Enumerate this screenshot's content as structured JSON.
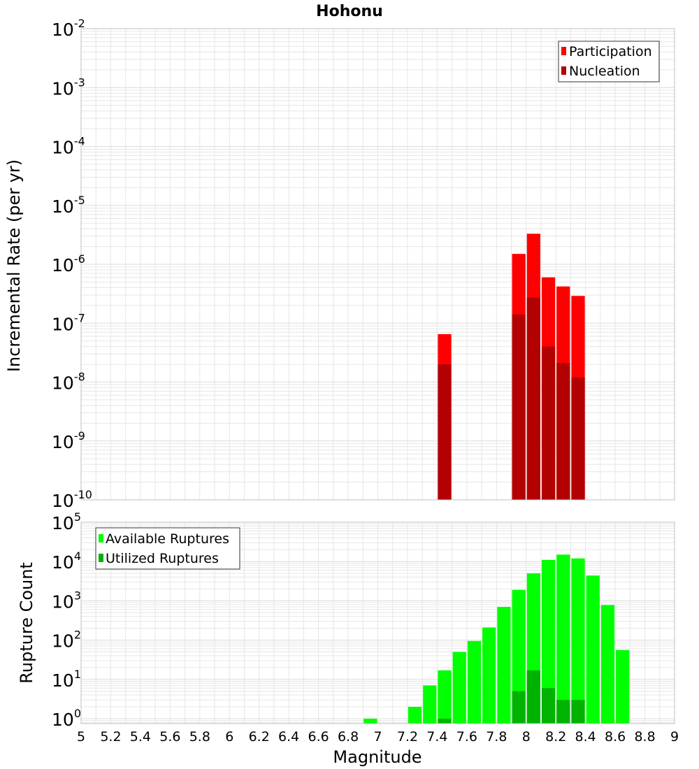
{
  "title": "Hohonu",
  "xlabel": "Magnitude",
  "x_ticks": [
    "5",
    "5.2",
    "5.4",
    "5.6",
    "5.8",
    "6",
    "6.2",
    "6.4",
    "6.6",
    "6.8",
    "7",
    "7.2",
    "7.4",
    "7.6",
    "7.8",
    "8",
    "8.2",
    "8.4",
    "8.6",
    "8.8",
    "9"
  ],
  "colors": {
    "participation": "#ff0000",
    "nucleation": "#b30000",
    "available": "#00ff00",
    "utilized": "#00b300",
    "grid": "#e6e6e6",
    "frame": "#bfbfbf"
  },
  "chart_data": [
    {
      "type": "bar",
      "title": "Hohonu",
      "ylabel": "Incremental Rate (per yr)",
      "yscale": "log",
      "ylim": [
        1e-10,
        0.01
      ],
      "y_tick_exponents": [
        "-10",
        "-9",
        "-8",
        "-7",
        "-6",
        "-5",
        "-4",
        "-3",
        "-2"
      ],
      "xlim": [
        5,
        9
      ],
      "bar_width": 0.1,
      "legend_position": "top-right",
      "series": [
        {
          "name": "Participation",
          "x": [
            7.45,
            7.95,
            8.05,
            8.15,
            8.25,
            8.35
          ],
          "values": [
            6.5e-08,
            1.5e-06,
            3.3e-06,
            6e-07,
            4.2e-07,
            2.9e-07
          ]
        },
        {
          "name": "Nucleation",
          "x": [
            7.45,
            7.95,
            8.05,
            8.15,
            8.25,
            8.35
          ],
          "values": [
            2e-08,
            1.4e-07,
            2.7e-07,
            4e-08,
            2.1e-08,
            1.2e-08
          ]
        }
      ]
    },
    {
      "type": "bar",
      "xlabel": "Magnitude",
      "ylabel": "Rupture Count",
      "yscale": "log",
      "ylim": [
        0.75,
        100000.0
      ],
      "y_tick_exponents": [
        "0",
        "1",
        "2",
        "3",
        "4",
        "5"
      ],
      "xlim": [
        5,
        9
      ],
      "bar_width": 0.1,
      "legend_position": "top-left",
      "series": [
        {
          "name": "Available Ruptures",
          "x": [
            6.95,
            7.25,
            7.35,
            7.45,
            7.55,
            7.65,
            7.75,
            7.85,
            7.95,
            8.05,
            8.15,
            8.25,
            8.35,
            8.45,
            8.55,
            8.65
          ],
          "values": [
            1,
            2,
            7,
            17,
            50,
            95,
            210,
            700,
            1900,
            5000,
            11000,
            15000,
            12000,
            4400,
            780,
            56
          ]
        },
        {
          "name": "Utilized Ruptures",
          "x": [
            7.45,
            7.95,
            8.05,
            8.15,
            8.25,
            8.35
          ],
          "values": [
            1,
            5,
            17,
            6,
            3,
            3
          ]
        }
      ]
    }
  ]
}
